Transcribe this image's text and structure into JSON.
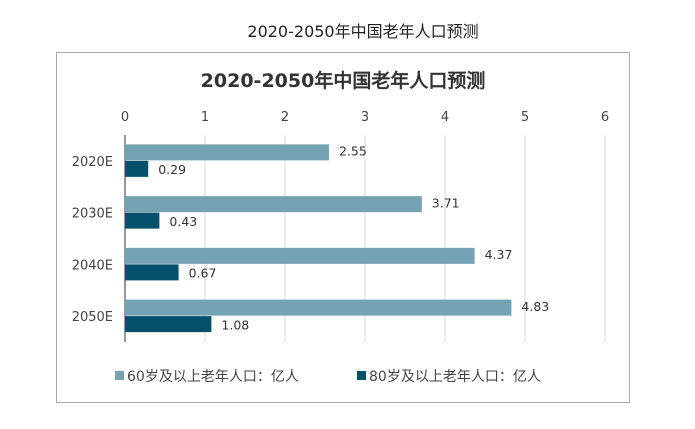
{
  "page_title": "2020-2050年中国老年人口预测",
  "chart_data": {
    "type": "bar",
    "orientation": "horizontal",
    "title": "2020-2050年中国老年人口预测",
    "categories": [
      "2020E",
      "2030E",
      "2040E",
      "2050E"
    ],
    "series": [
      {
        "name": "60岁及以上老年人口：亿人",
        "values": [
          2.55,
          3.71,
          4.37,
          4.83
        ],
        "color": "#75a3b4"
      },
      {
        "name": "80岁及以上老年人口：亿人",
        "values": [
          0.29,
          0.43,
          0.67,
          1.08
        ],
        "color": "#02506b"
      }
    ],
    "xlim": [
      0,
      6
    ],
    "xticks": [
      "0",
      "1",
      "2",
      "3",
      "4",
      "5",
      "6"
    ],
    "x_axis_position": "top",
    "grid": true,
    "legend": "bottom",
    "data_labels": true
  }
}
